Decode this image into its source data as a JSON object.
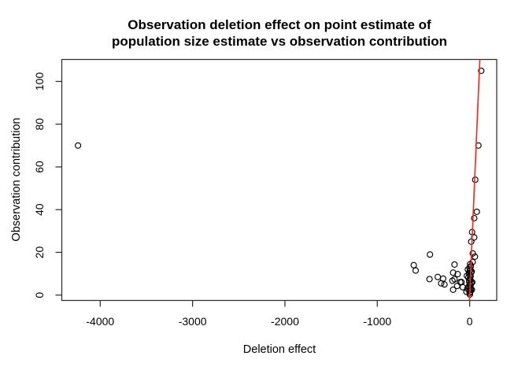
{
  "chart_data": {
    "type": "scatter",
    "title_line1": "Observation deletion effect on point estimate of",
    "title_line2": "population size estimate vs observation contribution",
    "xlabel": "Deletion effect",
    "ylabel": "Observation contribution",
    "xlim": [
      -4416,
      293
    ],
    "ylim": [
      -2.5,
      110.3
    ],
    "x_ticks": [
      -4000,
      -3000,
      -2000,
      -1000,
      0
    ],
    "y_ticks": [
      0,
      20,
      40,
      60,
      80,
      100
    ],
    "grid": false,
    "legend": null,
    "point_style": {
      "marker": "open-circle",
      "color": "#000000"
    },
    "fit_line": {
      "slope": 1,
      "intercept": 0,
      "color": "#ef2e26"
    },
    "points": [
      [
        -4240,
        70
      ],
      [
        125,
        105
      ],
      [
        94,
        70
      ],
      [
        60,
        54
      ],
      [
        77,
        39
      ],
      [
        49,
        36
      ],
      [
        26,
        29.5
      ],
      [
        49,
        27
      ],
      [
        17,
        25
      ],
      [
        34,
        19.5
      ],
      [
        57,
        18
      ],
      [
        32,
        15.5
      ],
      [
        -430,
        19
      ],
      [
        -605,
        14
      ],
      [
        -585,
        11.5
      ],
      [
        -435,
        7.5
      ],
      [
        -345,
        8.5
      ],
      [
        -287,
        7.7
      ],
      [
        -309,
        5.5
      ],
      [
        -273,
        5
      ],
      [
        -179,
        10.5
      ],
      [
        -187,
        6.7
      ],
      [
        -179,
        2.5
      ],
      [
        -164,
        14.3
      ],
      [
        -130,
        9.8
      ],
      [
        -164,
        7.4
      ],
      [
        -102,
        6.1
      ],
      [
        -136,
        4.3
      ],
      [
        -88,
        6.1
      ],
      [
        -74,
        3.7
      ],
      [
        5,
        14.5
      ],
      [
        12,
        13.5
      ],
      [
        -2,
        12.8
      ],
      [
        8,
        12
      ],
      [
        0,
        11.2
      ],
      [
        15,
        10.6
      ],
      [
        -8,
        10
      ],
      [
        5,
        9.4
      ],
      [
        10,
        8.8
      ],
      [
        -15,
        8.2
      ],
      [
        2,
        7.6
      ],
      [
        8,
        7
      ],
      [
        -5,
        6.4
      ],
      [
        18,
        5.8
      ],
      [
        0,
        5.2
      ],
      [
        10,
        4.6
      ],
      [
        -10,
        4
      ],
      [
        5,
        3.4
      ],
      [
        14,
        2.8
      ],
      [
        -2,
        2.2
      ],
      [
        8,
        1.6
      ],
      [
        0,
        1
      ],
      [
        22,
        11
      ],
      [
        28,
        6
      ],
      [
        -25,
        3
      ],
      [
        -35,
        1.5
      ],
      [
        2,
        0.3
      ],
      [
        -20,
        12
      ],
      [
        24,
        2.5
      ],
      [
        -30,
        9
      ]
    ]
  },
  "style": {
    "background": "#ffffff",
    "axis_color": "#2e2e2e",
    "text_color": "#000000",
    "point_color": "#000000",
    "line_color": "#ef2e26"
  }
}
